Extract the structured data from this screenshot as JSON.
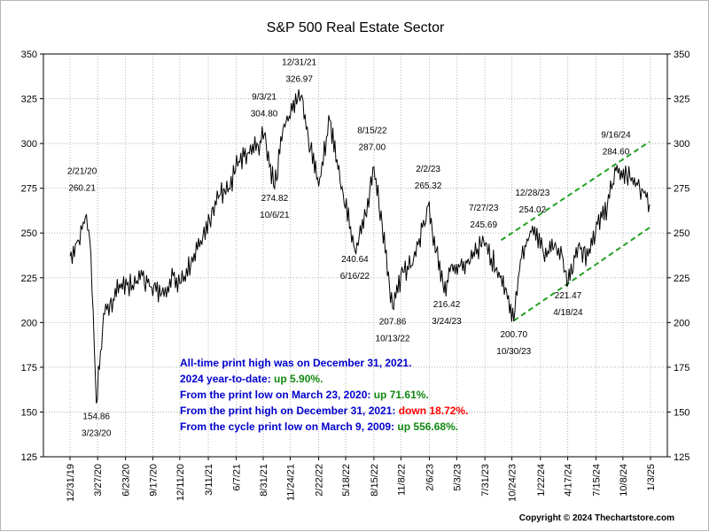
{
  "chart_data": {
    "type": "line",
    "title": "S&P 500 Real Estate Sector",
    "xlabel": "",
    "ylabel": "",
    "ylim": [
      125,
      350
    ],
    "y_ticks": [
      125,
      150,
      175,
      200,
      225,
      250,
      275,
      300,
      325,
      350
    ],
    "x_tick_labels": [
      "12/31/19",
      "3/27/20",
      "6/23/20",
      "9/17/20",
      "12/11/20",
      "3/11/21",
      "6/7/21",
      "8/31/21",
      "11/24/21",
      "2/22/22",
      "5/18/22",
      "8/15/22",
      "11/8/22",
      "2/6/23",
      "5/3/23",
      "7/31/23",
      "10/24/23",
      "1/22/24",
      "4/17/24",
      "7/15/24",
      "10/8/24",
      "1/3/25"
    ],
    "grid": true,
    "legend": "none",
    "line_color": "#000000",
    "trend_color": "#22a022",
    "series": [
      {
        "x": [
          "12/31/19",
          "1/24/20",
          "2/21/20",
          "3/6/20",
          "3/23/20",
          "4/15/20",
          "5/15/20",
          "6/10/20",
          "7/15/20",
          "8/15/20",
          "9/10/20",
          "10/15/20",
          "10/30/20",
          "11/20/20",
          "12/15/20",
          "1/15/21",
          "2/15/21",
          "3/15/21",
          "4/15/21",
          "5/15/21",
          "6/15/21",
          "7/15/21",
          "8/15/21",
          "9/3/21",
          "10/6/21",
          "11/1/21",
          "12/1/21",
          "12/31/21",
          "1/27/22",
          "2/22/22",
          "3/29/22",
          "5/10/22",
          "6/16/22",
          "7/20/22",
          "8/15/22",
          "9/10/22",
          "10/13/22",
          "11/15/22",
          "12/15/22",
          "1/15/23",
          "2/2/23",
          "2/28/23",
          "3/24/23",
          "4/15/23",
          "5/15/23",
          "6/15/23",
          "7/27/23",
          "8/20/23",
          "9/20/23",
          "10/30/23",
          "11/20/23",
          "12/28/23",
          "2/1/24",
          "3/5/24",
          "3/30/24",
          "4/18/24",
          "5/20/24",
          "6/20/24",
          "7/20/24",
          "8/20/24",
          "9/16/24",
          "10/20/24",
          "11/20/24",
          "12/10/24",
          "12/31/24"
        ],
        "y": [
          237,
          246,
          260.21,
          238,
          154.86,
          205,
          213,
          222,
          221,
          226,
          220,
          216,
          214,
          226,
          222,
          233,
          246,
          257,
          271,
          275,
          290,
          295,
          299,
          304.8,
          274.82,
          308,
          318,
          326.97,
          297,
          276,
          313,
          272,
          240.64,
          260,
          287,
          255,
          207.86,
          228,
          232,
          253,
          265.32,
          240,
          216.42,
          232,
          232,
          234,
          245.69,
          236,
          226,
          200.7,
          235,
          254.02,
          238,
          242,
          238,
          221.47,
          243,
          237,
          255,
          265,
          284.6,
          282,
          278,
          274,
          266
        ]
      }
    ],
    "annotations": [
      {
        "date": "2/21/20",
        "value": "260.21"
      },
      {
        "date": "3/23/20",
        "value": "154.86"
      },
      {
        "date": "9/3/21",
        "value": "304.80"
      },
      {
        "date": "10/6/21",
        "value": "274.82"
      },
      {
        "date": "12/31/21",
        "value": "326.97"
      },
      {
        "date": "6/16/22",
        "value": "240.64"
      },
      {
        "date": "8/15/22",
        "value": "287.00"
      },
      {
        "date": "10/13/22",
        "value": "207.86"
      },
      {
        "date": "2/2/23",
        "value": "265.32"
      },
      {
        "date": "3/24/23",
        "value": "216.42"
      },
      {
        "date": "7/27/23",
        "value": "245.69"
      },
      {
        "date": "10/30/23",
        "value": "200.70"
      },
      {
        "date": "12/28/23",
        "value": "254.02"
      },
      {
        "date": "4/18/24",
        "value": "221.47"
      },
      {
        "date": "9/16/24",
        "value": "284.60"
      }
    ],
    "trend_lines": [
      {
        "from": {
          "date": "9/20/23",
          "value": 246
        },
        "to": {
          "date": "12/31/24",
          "value": 301
        }
      },
      {
        "from": {
          "date": "10/30/23",
          "value": 201
        },
        "to": {
          "date": "12/31/24",
          "value": 253
        }
      }
    ],
    "info_box": [
      [
        {
          "text": "All-time print high was on December 31, 2021.",
          "color": "#0000cc"
        }
      ],
      [
        {
          "text": "2024 year-to-date: ",
          "color": "#0000cc"
        },
        {
          "text": "up 5.90%.",
          "color": "#118811"
        }
      ],
      [
        {
          "text": "From the print low on March 23, 2020:  ",
          "color": "#0000cc"
        },
        {
          "text": "up 71.61%.",
          "color": "#118811"
        }
      ],
      [
        {
          "text": "From the print high on December 31, 2021:  ",
          "color": "#0000cc"
        },
        {
          "text": "down 18.72%.",
          "color": "#ff0000"
        }
      ],
      [
        {
          "text": "From the cycle print low on March 9, 2009:  ",
          "color": "#0000cc"
        },
        {
          "text": "up 556.68%.",
          "color": "#118811"
        }
      ]
    ],
    "copyright": "Copyright © 2024 Thechartstore.com"
  }
}
